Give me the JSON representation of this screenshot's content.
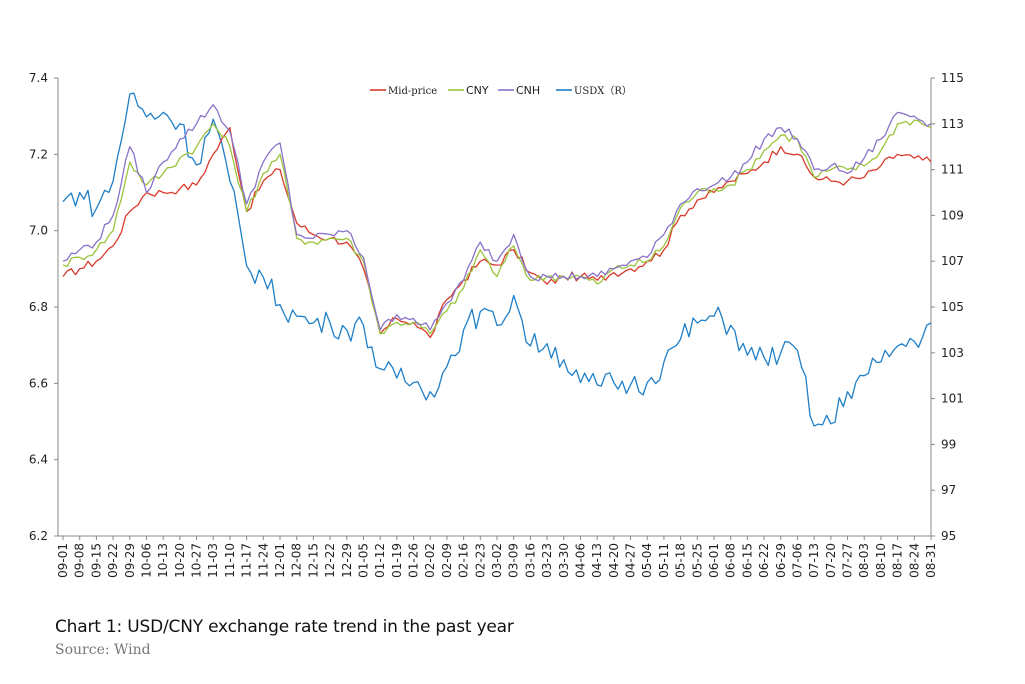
{
  "caption": "Chart 1: USD/CNY exchange rate trend in the past year",
  "source": "Source: Wind",
  "chart_data": {
    "type": "line",
    "grid": false,
    "legend_position": "top-center",
    "y_left": {
      "ticks": [
        "7.4",
        "7.2",
        "7.0",
        "6.8",
        "6.6",
        "6.4",
        "6.2"
      ],
      "range": [
        6.2,
        7.4
      ]
    },
    "y_right": {
      "ticks": [
        "115",
        "113",
        "111",
        "109",
        "107",
        "105",
        "103",
        "101",
        "99",
        "97",
        "95"
      ],
      "range": [
        95,
        115
      ]
    },
    "x_ticks": [
      "09-01",
      "09-08",
      "09-15",
      "09-22",
      "09-29",
      "10-06",
      "10-13",
      "10-20",
      "10-27",
      "11-03",
      "11-10",
      "11-17",
      "11-24",
      "12-01",
      "12-08",
      "12-15",
      "12-22",
      "12-29",
      "01-05",
      "01-12",
      "01-19",
      "01-26",
      "02-02",
      "02-09",
      "02-16",
      "02-23",
      "03-02",
      "03-09",
      "03-16",
      "03-23",
      "03-30",
      "04-06",
      "04-13",
      "04-20",
      "04-27",
      "05-04",
      "05-11",
      "05-18",
      "05-25",
      "06-01",
      "06-08",
      "06-15",
      "06-22",
      "06-29",
      "07-06",
      "07-13",
      "07-20",
      "07-27",
      "08-03",
      "08-10",
      "08-17",
      "08-24",
      "08-31"
    ],
    "series": [
      {
        "name": "Mid-price",
        "axis": "left",
        "color": "#d93a2b",
        "values": [
          6.88,
          6.9,
          6.92,
          6.96,
          7.05,
          7.1,
          7.1,
          7.11,
          7.12,
          7.2,
          7.27,
          7.05,
          7.13,
          7.16,
          7.02,
          6.99,
          6.98,
          6.97,
          6.9,
          6.73,
          6.77,
          6.76,
          6.72,
          6.82,
          6.87,
          6.92,
          6.91,
          6.95,
          6.89,
          6.86,
          6.88,
          6.88,
          6.87,
          6.89,
          6.9,
          6.92,
          6.95,
          7.04,
          7.08,
          7.1,
          7.13,
          7.15,
          7.18,
          7.22,
          7.2,
          7.14,
          7.13,
          7.13,
          7.14,
          7.17,
          7.2,
          7.19,
          7.18
        ]
      },
      {
        "name": "CNY",
        "axis": "left",
        "color": "#9ac43c",
        "values": [
          6.91,
          6.93,
          6.95,
          7.0,
          7.18,
          7.12,
          7.15,
          7.19,
          7.22,
          7.28,
          7.22,
          7.05,
          7.15,
          7.2,
          6.98,
          6.97,
          6.98,
          6.98,
          6.92,
          6.73,
          6.76,
          6.76,
          6.73,
          6.79,
          6.85,
          6.95,
          6.88,
          6.96,
          6.87,
          6.88,
          6.88,
          6.88,
          6.86,
          6.9,
          6.91,
          6.92,
          6.96,
          7.06,
          7.1,
          7.11,
          7.12,
          7.16,
          7.21,
          7.25,
          7.24,
          7.14,
          7.16,
          7.16,
          7.17,
          7.21,
          7.28,
          7.29,
          7.27
        ]
      },
      {
        "name": "CNH",
        "axis": "left",
        "color": "#8a72c9",
        "values": [
          6.92,
          6.95,
          6.97,
          7.04,
          7.22,
          7.1,
          7.18,
          7.24,
          7.28,
          7.33,
          7.26,
          7.07,
          7.18,
          7.23,
          6.99,
          6.98,
          6.99,
          7.0,
          6.93,
          6.74,
          6.78,
          6.77,
          6.74,
          6.81,
          6.87,
          6.97,
          6.92,
          6.99,
          6.88,
          6.88,
          6.88,
          6.88,
          6.88,
          6.9,
          6.92,
          6.93,
          6.99,
          7.07,
          7.11,
          7.12,
          7.14,
          7.18,
          7.24,
          7.27,
          7.24,
          7.16,
          7.17,
          7.15,
          7.19,
          7.24,
          7.31,
          7.3,
          7.28
        ]
      },
      {
        "name": "USDX（R）",
        "axis": "right",
        "color": "#1f7fc8",
        "values": [
          109.6,
          110.0,
          109.3,
          110.5,
          114.3,
          113.3,
          113.5,
          113.0,
          111.2,
          113.2,
          110.5,
          106.8,
          106.3,
          105.1,
          104.6,
          104.3,
          104.3,
          104.0,
          104.2,
          102.3,
          101.9,
          101.7,
          101.3,
          102.4,
          104.0,
          104.8,
          104.2,
          105.5,
          103.3,
          103.4,
          102.7,
          101.7,
          101.6,
          101.7,
          101.6,
          101.7,
          102.6,
          103.6,
          104.3,
          104.6,
          104.2,
          102.9,
          102.8,
          103.0,
          103.1,
          99.8,
          99.9,
          101.3,
          102.0,
          102.6,
          103.3,
          103.5,
          104.3
        ]
      }
    ]
  }
}
